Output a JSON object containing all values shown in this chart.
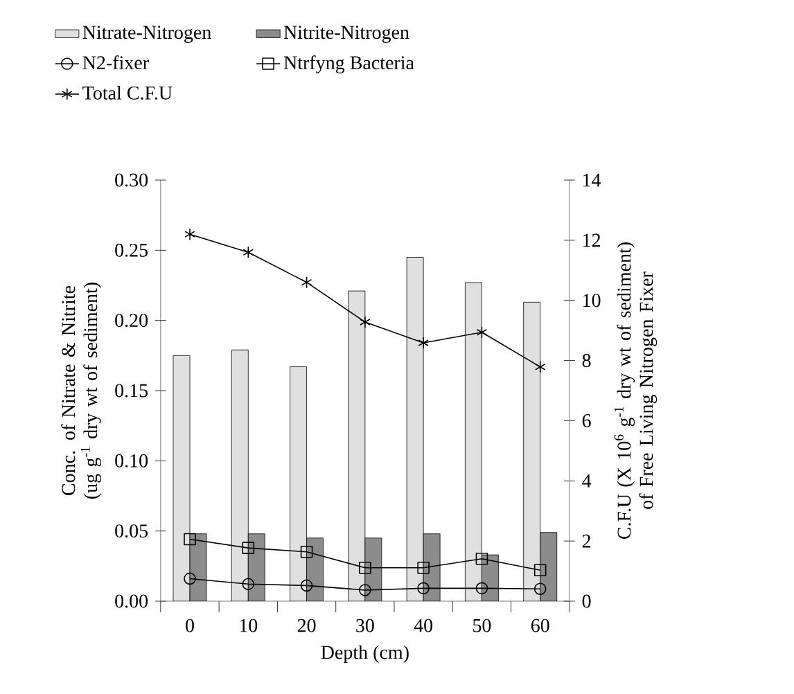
{
  "chart_data": {
    "type": "bar",
    "xlabel": "Depth (cm)",
    "ylabel": "Conc. of Nitrate & Nitrite (ug g$^{-1}$ dry wt of sediment)",
    "y2label": "C.F.U (X 10$^{6}$ g$^{-1}$ dry wt of sediment) of Free Living Nitrogen Fixer",
    "categories": [
      "0",
      "10",
      "20",
      "30",
      "40",
      "50",
      "60"
    ],
    "ylim": [
      0,
      0.3
    ],
    "yticks": [
      {
        "value": 0,
        "label": "0.00"
      },
      {
        "value": 0.05,
        "label": "0.05"
      },
      {
        "value": 0.1,
        "label": "0.10"
      },
      {
        "value": 0.15,
        "label": "0.15"
      },
      {
        "value": 0.2,
        "label": "0.20"
      },
      {
        "value": 0.25,
        "label": "0.25"
      },
      {
        "value": 0.3,
        "label": "0.30"
      }
    ],
    "y2lim": [
      0,
      14
    ],
    "y2ticks": [
      0,
      2,
      4,
      6,
      8,
      10,
      12,
      14
    ],
    "grid": false,
    "legend": "top",
    "series": [
      {
        "name": "Nitrate-Nitrogen",
        "color": "#e0e0e0",
        "values": [
          0.175,
          0.179,
          0.167,
          0.221,
          0.245,
          0.227,
          0.213
        ]
      },
      {
        "name": "Nitrite-Nitrogen",
        "color": "#8c8c8c",
        "values": [
          0.048,
          0.048,
          0.045,
          0.045,
          0.048,
          0.033,
          0.049
        ]
      },
      {
        "name": "N2-fixer",
        "type": "line",
        "axis": "y2",
        "marker": "circle",
        "line_style": "solid",
        "color": "#000000",
        "values": [
          0.75,
          0.57,
          0.52,
          0.37,
          0.43,
          0.43,
          0.41
        ]
      },
      {
        "name": "Ntrfyng Bacteria",
        "type": "line",
        "axis": "y2",
        "marker": "square",
        "line_style": "solid",
        "color": "#000000",
        "values": [
          2.06,
          1.77,
          1.64,
          1.11,
          1.11,
          1.41,
          1.03
        ]
      },
      {
        "name": "Total  C.F.U",
        "type": "line",
        "axis": "y2",
        "marker": "cross",
        "line_style": "solid",
        "color": "#000000",
        "values": [
          12.2,
          11.6,
          10.6,
          9.28,
          8.59,
          8.94,
          7.79
        ]
      }
    ]
  }
}
